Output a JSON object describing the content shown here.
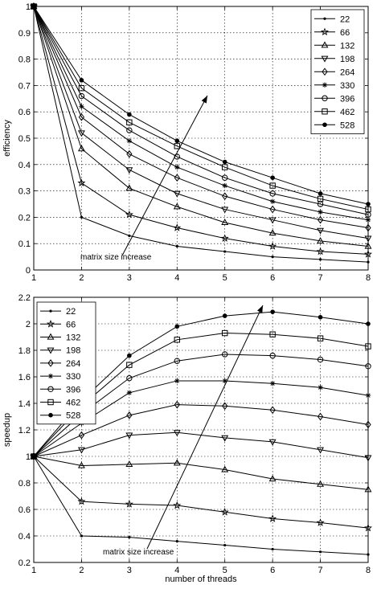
{
  "chart_data": [
    {
      "type": "line",
      "title": "",
      "xlabel": "",
      "ylabel": "efficiency",
      "xlim": [
        1,
        8
      ],
      "ylim": [
        0,
        1
      ],
      "grid": true,
      "legend_position": "top-right",
      "x": [
        1,
        2,
        3,
        4,
        5,
        6,
        7,
        8
      ],
      "x_ticks": [
        "1",
        "2",
        "3",
        "4",
        "5",
        "6",
        "7",
        "8"
      ],
      "y_ticks": [
        "0",
        "0.1",
        "0.2",
        "0.3",
        "0.4",
        "0.5",
        "0.6",
        "0.7",
        "0.8",
        "0.9",
        "1"
      ],
      "annotation": "matrix size increase",
      "series": [
        {
          "name": "22",
          "marker": "dot",
          "values": [
            1,
            0.2,
            0.13,
            0.09,
            0.07,
            0.05,
            0.04,
            0.03
          ]
        },
        {
          "name": "66",
          "marker": "star",
          "values": [
            1,
            0.33,
            0.21,
            0.16,
            0.12,
            0.09,
            0.07,
            0.06
          ]
        },
        {
          "name": "132",
          "marker": "triangle-up",
          "values": [
            1,
            0.46,
            0.31,
            0.24,
            0.18,
            0.14,
            0.11,
            0.09
          ]
        },
        {
          "name": "198",
          "marker": "triangle-down",
          "values": [
            1,
            0.52,
            0.38,
            0.29,
            0.23,
            0.19,
            0.15,
            0.12
          ]
        },
        {
          "name": "264",
          "marker": "diamond",
          "values": [
            1,
            0.58,
            0.44,
            0.35,
            0.28,
            0.23,
            0.19,
            0.16
          ]
        },
        {
          "name": "330",
          "marker": "asterisk",
          "values": [
            1,
            0.62,
            0.49,
            0.39,
            0.32,
            0.26,
            0.22,
            0.19
          ]
        },
        {
          "name": "396",
          "marker": "circle",
          "values": [
            1,
            0.66,
            0.53,
            0.43,
            0.35,
            0.29,
            0.25,
            0.21
          ]
        },
        {
          "name": "462",
          "marker": "square",
          "values": [
            1,
            0.69,
            0.56,
            0.47,
            0.39,
            0.32,
            0.27,
            0.23
          ]
        },
        {
          "name": "528",
          "marker": "filled-dot",
          "values": [
            1,
            0.72,
            0.59,
            0.49,
            0.41,
            0.35,
            0.29,
            0.25
          ]
        }
      ]
    },
    {
      "type": "line",
      "title": "",
      "xlabel": "number of threads",
      "ylabel": "speedup",
      "xlim": [
        1,
        8
      ],
      "ylim": [
        0.2,
        2.2
      ],
      "grid": true,
      "legend_position": "top-left",
      "x": [
        1,
        2,
        3,
        4,
        5,
        6,
        7,
        8
      ],
      "x_ticks": [
        "1",
        "2",
        "3",
        "4",
        "5",
        "6",
        "7",
        "8"
      ],
      "y_ticks": [
        "0.2",
        "0.4",
        "0.6",
        "0.8",
        "1",
        "1.2",
        "1.4",
        "1.6",
        "1.8",
        "2",
        "2.2"
      ],
      "annotation": "matrix size increase",
      "series": [
        {
          "name": "22",
          "marker": "dot",
          "values": [
            1,
            0.4,
            0.39,
            0.36,
            0.33,
            0.3,
            0.28,
            0.26
          ]
        },
        {
          "name": "66",
          "marker": "star",
          "values": [
            1,
            0.66,
            0.64,
            0.63,
            0.58,
            0.53,
            0.5,
            0.46
          ]
        },
        {
          "name": "132",
          "marker": "triangle-up",
          "values": [
            1,
            0.93,
            0.94,
            0.95,
            0.9,
            0.83,
            0.79,
            0.75
          ]
        },
        {
          "name": "198",
          "marker": "triangle-down",
          "values": [
            1,
            1.05,
            1.16,
            1.18,
            1.14,
            1.11,
            1.05,
            0.99
          ]
        },
        {
          "name": "264",
          "marker": "diamond",
          "values": [
            1,
            1.16,
            1.31,
            1.39,
            1.38,
            1.35,
            1.3,
            1.24
          ]
        },
        {
          "name": "330",
          "marker": "asterisk",
          "values": [
            1,
            1.25,
            1.48,
            1.57,
            1.57,
            1.55,
            1.52,
            1.46
          ]
        },
        {
          "name": "396",
          "marker": "circle",
          "values": [
            1,
            1.32,
            1.59,
            1.72,
            1.77,
            1.76,
            1.73,
            1.68
          ]
        },
        {
          "name": "462",
          "marker": "square",
          "values": [
            1,
            1.38,
            1.69,
            1.88,
            1.93,
            1.92,
            1.89,
            1.83
          ]
        },
        {
          "name": "528",
          "marker": "filled-dot",
          "values": [
            1,
            1.42,
            1.76,
            1.98,
            2.06,
            2.09,
            2.05,
            2.0
          ]
        }
      ]
    }
  ]
}
